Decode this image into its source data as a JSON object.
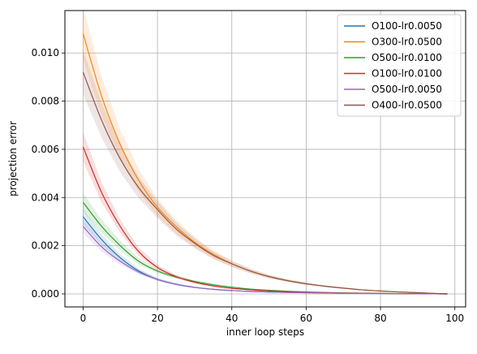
{
  "chart_data": {
    "type": "line",
    "xlabel": "inner loop steps",
    "ylabel": "projection error",
    "xlim": [
      -4.9,
      102.9
    ],
    "ylim": [
      -0.00054,
      0.01176
    ],
    "x_ticks": [
      0,
      20,
      40,
      60,
      80,
      100
    ],
    "x_tick_labels": [
      "0",
      "20",
      "40",
      "60",
      "80",
      "100"
    ],
    "y_ticks": [
      0.0,
      0.002,
      0.004,
      0.006,
      0.008,
      0.01
    ],
    "y_tick_labels": [
      "0.000",
      "0.002",
      "0.004",
      "0.006",
      "0.008",
      "0.010"
    ],
    "grid": true,
    "legend_position": "upper right",
    "x": [
      0,
      5,
      10,
      15,
      20,
      25,
      30,
      35,
      40,
      45,
      50,
      55,
      60,
      65,
      70,
      75,
      80,
      85,
      90,
      95,
      98
    ],
    "series": [
      {
        "name": "O100-lr0.0050",
        "color": "#1f77b4",
        "values": [
          0.0032,
          0.00225,
          0.0015,
          0.00095,
          0.0006,
          0.0004,
          0.00027,
          0.00019,
          0.00014,
          0.0001,
          8e-05,
          6e-05,
          5e-05,
          4e-05,
          3e-05,
          2e-05,
          1.5e-05,
          1e-05,
          6e-06,
          3e-06,
          0.0
        ]
      },
      {
        "name": "O300-lr0.0500",
        "color": "#ff7f0e",
        "values": [
          0.0108,
          0.0082,
          0.0062,
          0.0047,
          0.0036,
          0.0028,
          0.00215,
          0.00165,
          0.00125,
          0.00095,
          0.00072,
          0.00055,
          0.00042,
          0.00032,
          0.00024,
          0.00017,
          0.00012,
          8e-05,
          5e-05,
          1.5e-05,
          0.0
        ]
      },
      {
        "name": "O500-lr0.0100",
        "color": "#2ca02c",
        "values": [
          0.0038,
          0.0028,
          0.002,
          0.00135,
          0.00095,
          0.0007,
          0.00052,
          0.00038,
          0.00028,
          0.0002,
          0.00015,
          0.00011,
          8e-05,
          6e-05,
          4e-05,
          3e-05,
          2e-05,
          1.2e-05,
          7e-06,
          3e-06,
          0.0
        ]
      },
      {
        "name": "O100-lr0.0100",
        "color": "#d62728",
        "values": [
          0.0061,
          0.0042,
          0.0028,
          0.00175,
          0.0011,
          0.00072,
          0.00048,
          0.00033,
          0.00023,
          0.00017,
          0.00012,
          9e-05,
          7e-05,
          5e-05,
          4e-05,
          3e-05,
          2e-05,
          1.2e-05,
          7e-06,
          3e-06,
          0.0
        ]
      },
      {
        "name": "O500-lr0.0050",
        "color": "#9467bd",
        "values": [
          0.0028,
          0.00195,
          0.00135,
          0.0009,
          0.0006,
          0.0004,
          0.00027,
          0.00019,
          0.00014,
          0.0001,
          8e-05,
          6e-05,
          5e-05,
          4e-05,
          3e-05,
          2e-05,
          1.5e-05,
          1e-05,
          6e-06,
          3e-06,
          0.0
        ]
      },
      {
        "name": "O400-lr0.0500",
        "color": "#8c564b",
        "values": [
          0.0092,
          0.0072,
          0.0056,
          0.0044,
          0.0035,
          0.0027,
          0.0021,
          0.0016,
          0.00125,
          0.00095,
          0.00072,
          0.00055,
          0.00042,
          0.00032,
          0.00024,
          0.00017,
          0.00012,
          8e-05,
          5e-05,
          1.5e-05,
          0.0
        ]
      }
    ]
  }
}
